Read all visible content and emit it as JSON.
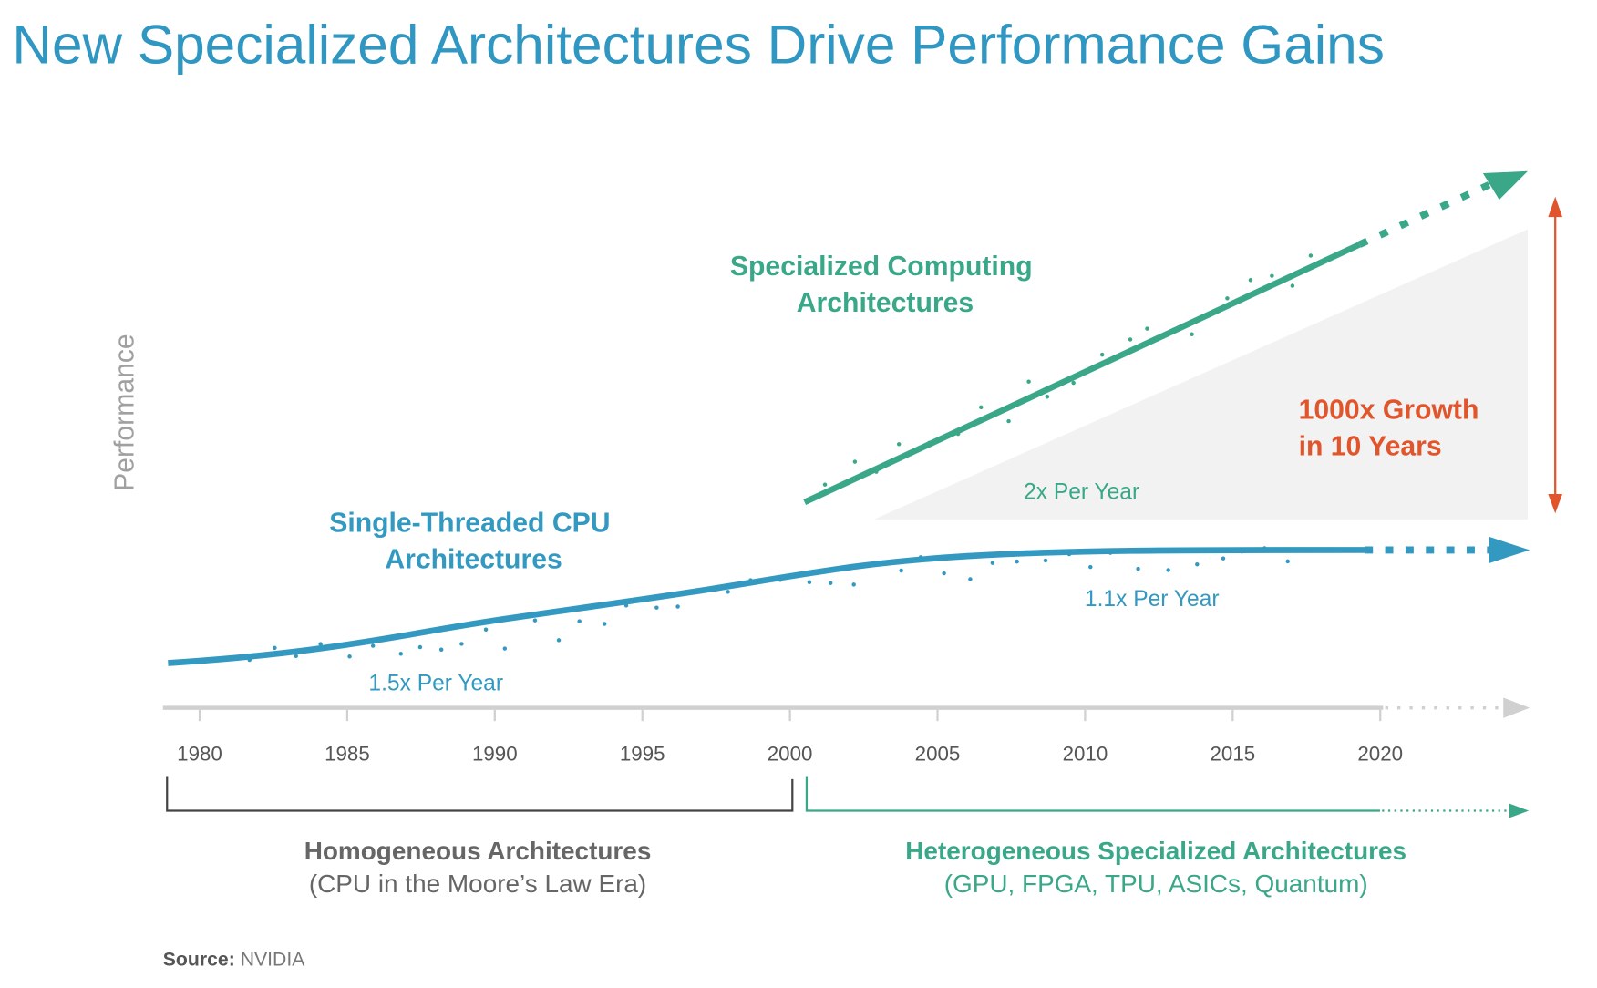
{
  "title": "New Specialized Architectures Drive Performance Gains",
  "source_label": "Source:",
  "source_value": "NVIDIA",
  "colors": {
    "title": "#2f97c1",
    "cpu": "#3399c0",
    "specialized": "#3aa888",
    "growth": "#e0552b",
    "axis": "#d0d0d0",
    "text_gray": "#666666",
    "shade": "#f2f2f2"
  },
  "chart_data": {
    "type": "line",
    "title": "New Specialized Architectures Drive Performance Gains",
    "ylabel": "Performance",
    "xlabel": "",
    "xlim": [
      1979,
      2025
    ],
    "x_ticks": [
      "1980",
      "1985",
      "1990",
      "1995",
      "2000",
      "2005",
      "2010",
      "2015",
      "2020"
    ],
    "grid": false,
    "series": [
      {
        "name": "Single-Threaded CPU Architectures",
        "name_lines": [
          "Single-Threaded CPU",
          "Architectures"
        ],
        "x_range": [
          1979,
          2020
        ],
        "growth_labels": [
          "1.5x Per Year",
          "1.1x Per Year"
        ],
        "extrapolated_to": 2025
      },
      {
        "name": "Specialized Computing Architectures",
        "name_lines": [
          "Specialized Computing",
          "Architectures"
        ],
        "x_range": [
          2000.5,
          2019.5
        ],
        "growth_labels": [
          "2x Per Year"
        ],
        "extrapolated_to": 2025
      }
    ],
    "annotations": {
      "growth": [
        "1000x Growth",
        "in 10 Years"
      ]
    },
    "eras": [
      {
        "title": "Homogeneous Architectures",
        "subtitle": "(CPU in the Moore’s Law Era)",
        "x_range": [
          1979,
          2000
        ]
      },
      {
        "title": "Heterogeneous Specialized Architectures",
        "subtitle": "(GPU, FPGA, TPU, ASICs, Quantum)",
        "x_range": [
          2000.5,
          2025
        ]
      }
    ]
  }
}
